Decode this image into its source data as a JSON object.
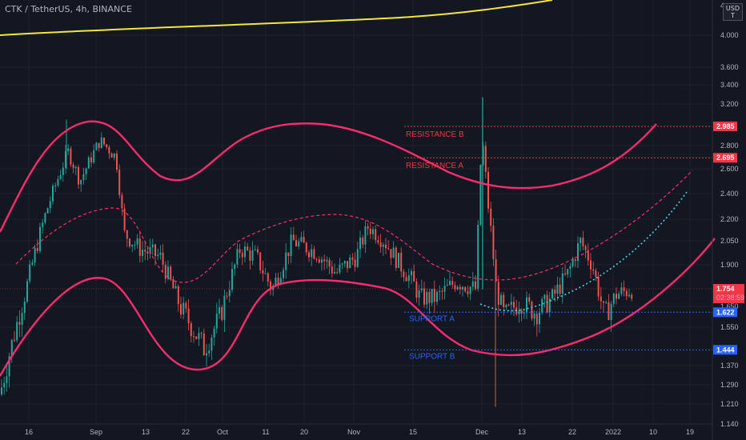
{
  "header": {
    "title": "CTK / TetherUS, 4h, BINANCE",
    "currency_top": "USD",
    "currency_bottom": "T"
  },
  "colors": {
    "background": "#131722",
    "grid": "#1e2230",
    "up": "#26a69a",
    "down": "#ef5350",
    "channel": "#ff2b6e",
    "resistance": "#f23645",
    "support": "#2962ff",
    "ema": "#f5e63d",
    "projection": "#4dd0e1"
  },
  "chart_data": {
    "type": "candlestick",
    "title": "CTK / TetherUS, 4h, BINANCE",
    "x_tick_labels": [
      "16",
      "Sep",
      "13",
      "22",
      "Oct",
      "11",
      "20",
      "Nov",
      "15",
      "Dec",
      "13",
      "22",
      "2022",
      "10",
      "19"
    ],
    "y_tick_labels": [
      "4.000",
      "3.600",
      "3.400",
      "3.200",
      "2.800",
      "2.600",
      "2.400",
      "2.200",
      "2.050",
      "1.900",
      "1.650",
      "1.550",
      "1.370",
      "1.290",
      "1.210",
      "1.140"
    ],
    "levels": [
      {
        "name": "RESISTANCE B",
        "value": 2.985,
        "label": "2.985",
        "color": "#f23645"
      },
      {
        "name": "RESISTANCE A",
        "value": 2.695,
        "label": "2.695",
        "color": "#f23645"
      },
      {
        "name": "SUPPORT A",
        "value": 1.622,
        "label": "1.622",
        "color": "#2962ff"
      },
      {
        "name": "SUPPORT B",
        "value": 1.444,
        "label": "1.444",
        "color": "#2962ff"
      }
    ],
    "last_price": {
      "value": 1.754,
      "label": "1.754",
      "countdown": "02:38:59"
    },
    "top_partial_tick": "4",
    "grid": true
  }
}
